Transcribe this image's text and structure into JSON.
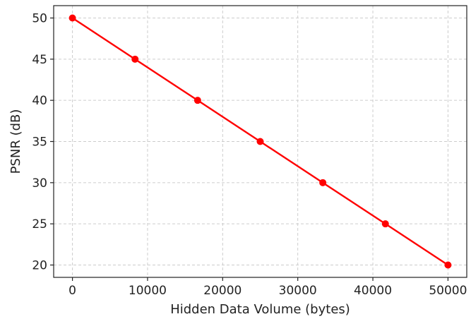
{
  "chart_data": {
    "type": "line",
    "title": "",
    "xlabel": "Hidden Data Volume (bytes)",
    "ylabel": "PSNR (dB)",
    "xlim": [
      -2500,
      52500
    ],
    "ylim": [
      18.5,
      51.5
    ],
    "xticks": [
      0,
      10000,
      20000,
      30000,
      40000,
      50000
    ],
    "yticks": [
      20,
      25,
      30,
      35,
      40,
      45,
      50
    ],
    "grid": true,
    "legend": "none",
    "series": [
      {
        "color": "#ff0000",
        "marker": "circle",
        "x": [
          0,
          8333,
          16667,
          25000,
          33333,
          41667,
          50000
        ],
        "y": [
          50,
          45,
          40,
          35,
          30,
          25,
          20
        ]
      }
    ]
  }
}
